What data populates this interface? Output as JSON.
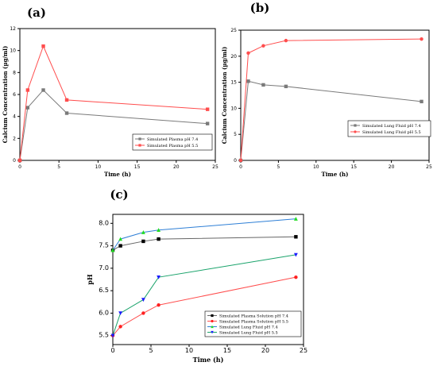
{
  "chart_data": [
    {
      "id": "a",
      "type": "line",
      "panel_label": "(a)",
      "xlabel": "Time (h)",
      "ylabel": "Calcium Concentration (µg/ml)",
      "xlim": [
        0,
        25
      ],
      "ylim": [
        0,
        12
      ],
      "xticks": [
        0,
        5,
        10,
        15,
        20,
        25
      ],
      "yticks": [
        0,
        2,
        4,
        6,
        8,
        10,
        12
      ],
      "legend_position": "lower-right",
      "series": [
        {
          "name": "Simulated Plasma pH 7.4",
          "color": "#7a7a7a",
          "marker": "square",
          "x": [
            0,
            1,
            3,
            6,
            24
          ],
          "y": [
            0,
            4.8,
            6.4,
            4.3,
            3.35
          ]
        },
        {
          "name": "Simulated Plasma pH 5.5",
          "color": "#ff4d4d",
          "marker": "square",
          "x": [
            0,
            1,
            3,
            6,
            24
          ],
          "y": [
            0,
            6.4,
            10.4,
            5.5,
            4.65
          ]
        }
      ]
    },
    {
      "id": "b",
      "type": "line",
      "panel_label": "(b)",
      "xlabel": "Time (h)",
      "ylabel": "Calcium Concentration (µg/ml)",
      "xlim": [
        0,
        25
      ],
      "ylim": [
        0,
        25
      ],
      "xticks": [
        0,
        5,
        10,
        15,
        20,
        25
      ],
      "yticks": [
        0,
        5,
        10,
        15,
        20,
        25
      ],
      "legend_position": "lower-right",
      "series": [
        {
          "name": "Simulated Lung Fluid pH 7.4",
          "color": "#7a7a7a",
          "marker": "square",
          "x": [
            0,
            1,
            3,
            6,
            24
          ],
          "y": [
            0,
            15.2,
            14.5,
            14.2,
            11.3
          ]
        },
        {
          "name": "Simulated Lung Fluid pH 5.5",
          "color": "#ff4d4d",
          "marker": "circle",
          "x": [
            0,
            1,
            3,
            6,
            24
          ],
          "y": [
            0,
            20.6,
            22.0,
            23.0,
            23.3
          ]
        }
      ]
    },
    {
      "id": "c",
      "type": "line",
      "panel_label": "(c)",
      "xlabel": "Time (h)",
      "ylabel": "pH",
      "xlim": [
        0,
        25
      ],
      "ylim": [
        5.3,
        8.2
      ],
      "xticks": [
        0,
        5,
        10,
        15,
        20,
        25
      ],
      "xtick_labels": [
        "0",
        "5",
        "10",
        "15",
        "20",
        "25"
      ],
      "yticks": [
        5.5,
        6.0,
        6.5,
        7.0,
        7.5,
        8.0
      ],
      "ytick_labels": [
        "5.5",
        "6.0",
        "6.5",
        "7.0",
        "7.5",
        "8.0"
      ],
      "legend_position": "lower-right",
      "series": [
        {
          "name": "Simulated Plasma Solution pH 7.4",
          "color": "#000000",
          "line_color": "#666666",
          "marker": "square",
          "x": [
            0,
            1,
            4,
            6,
            24
          ],
          "y": [
            7.4,
            7.5,
            7.6,
            7.65,
            7.7
          ]
        },
        {
          "name": "Simulated Plasma Solution pH 5.5",
          "color": "#ff2020",
          "line_color": "#ff4d4d",
          "marker": "circle",
          "x": [
            0,
            1,
            4,
            6,
            24
          ],
          "y": [
            5.5,
            5.7,
            6.0,
            6.18,
            6.8
          ]
        },
        {
          "name": "Simulated Lung Fluid pH 7.4",
          "color": "#22dd22",
          "line_color": "#2e7fd6",
          "marker": "triangle-up",
          "x": [
            0,
            1,
            4,
            6,
            24
          ],
          "y": [
            7.4,
            7.65,
            7.8,
            7.85,
            8.1
          ]
        },
        {
          "name": "Simulated Lung Fluid pH 5.5",
          "color": "#1a1aff",
          "line_color": "#1aa36b",
          "marker": "triangle-down",
          "x": [
            0,
            1,
            4,
            6,
            24
          ],
          "y": [
            5.5,
            6.0,
            6.3,
            6.8,
            7.3
          ]
        }
      ]
    }
  ]
}
